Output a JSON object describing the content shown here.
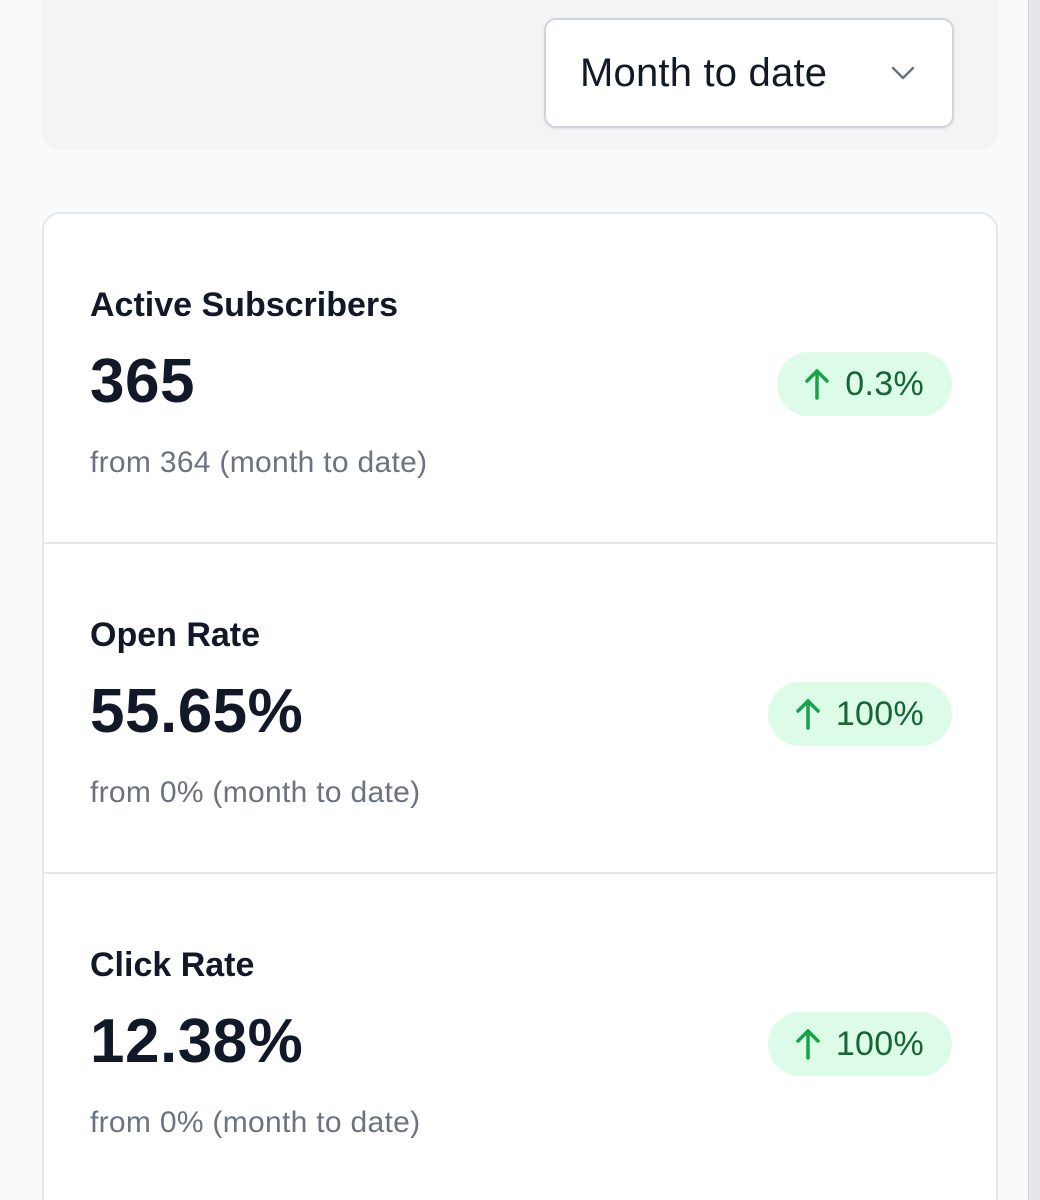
{
  "filter": {
    "selected": "Month to date",
    "icon": "chevron-down-icon"
  },
  "stats": [
    {
      "title": "Active Subscribers",
      "value": "365",
      "change": "0.3%",
      "change_direction": "up",
      "comparison": "from 364 (month to date)"
    },
    {
      "title": "Open Rate",
      "value": "55.65%",
      "change": "100%",
      "change_direction": "up",
      "comparison": "from 0% (month to date)"
    },
    {
      "title": "Click Rate",
      "value": "12.38%",
      "change": "100%",
      "change_direction": "up",
      "comparison": "from 0% (month to date)"
    }
  ],
  "colors": {
    "badge_bg": "#dcfce7",
    "badge_text": "#166534",
    "arrow_up": "#16a34a"
  }
}
